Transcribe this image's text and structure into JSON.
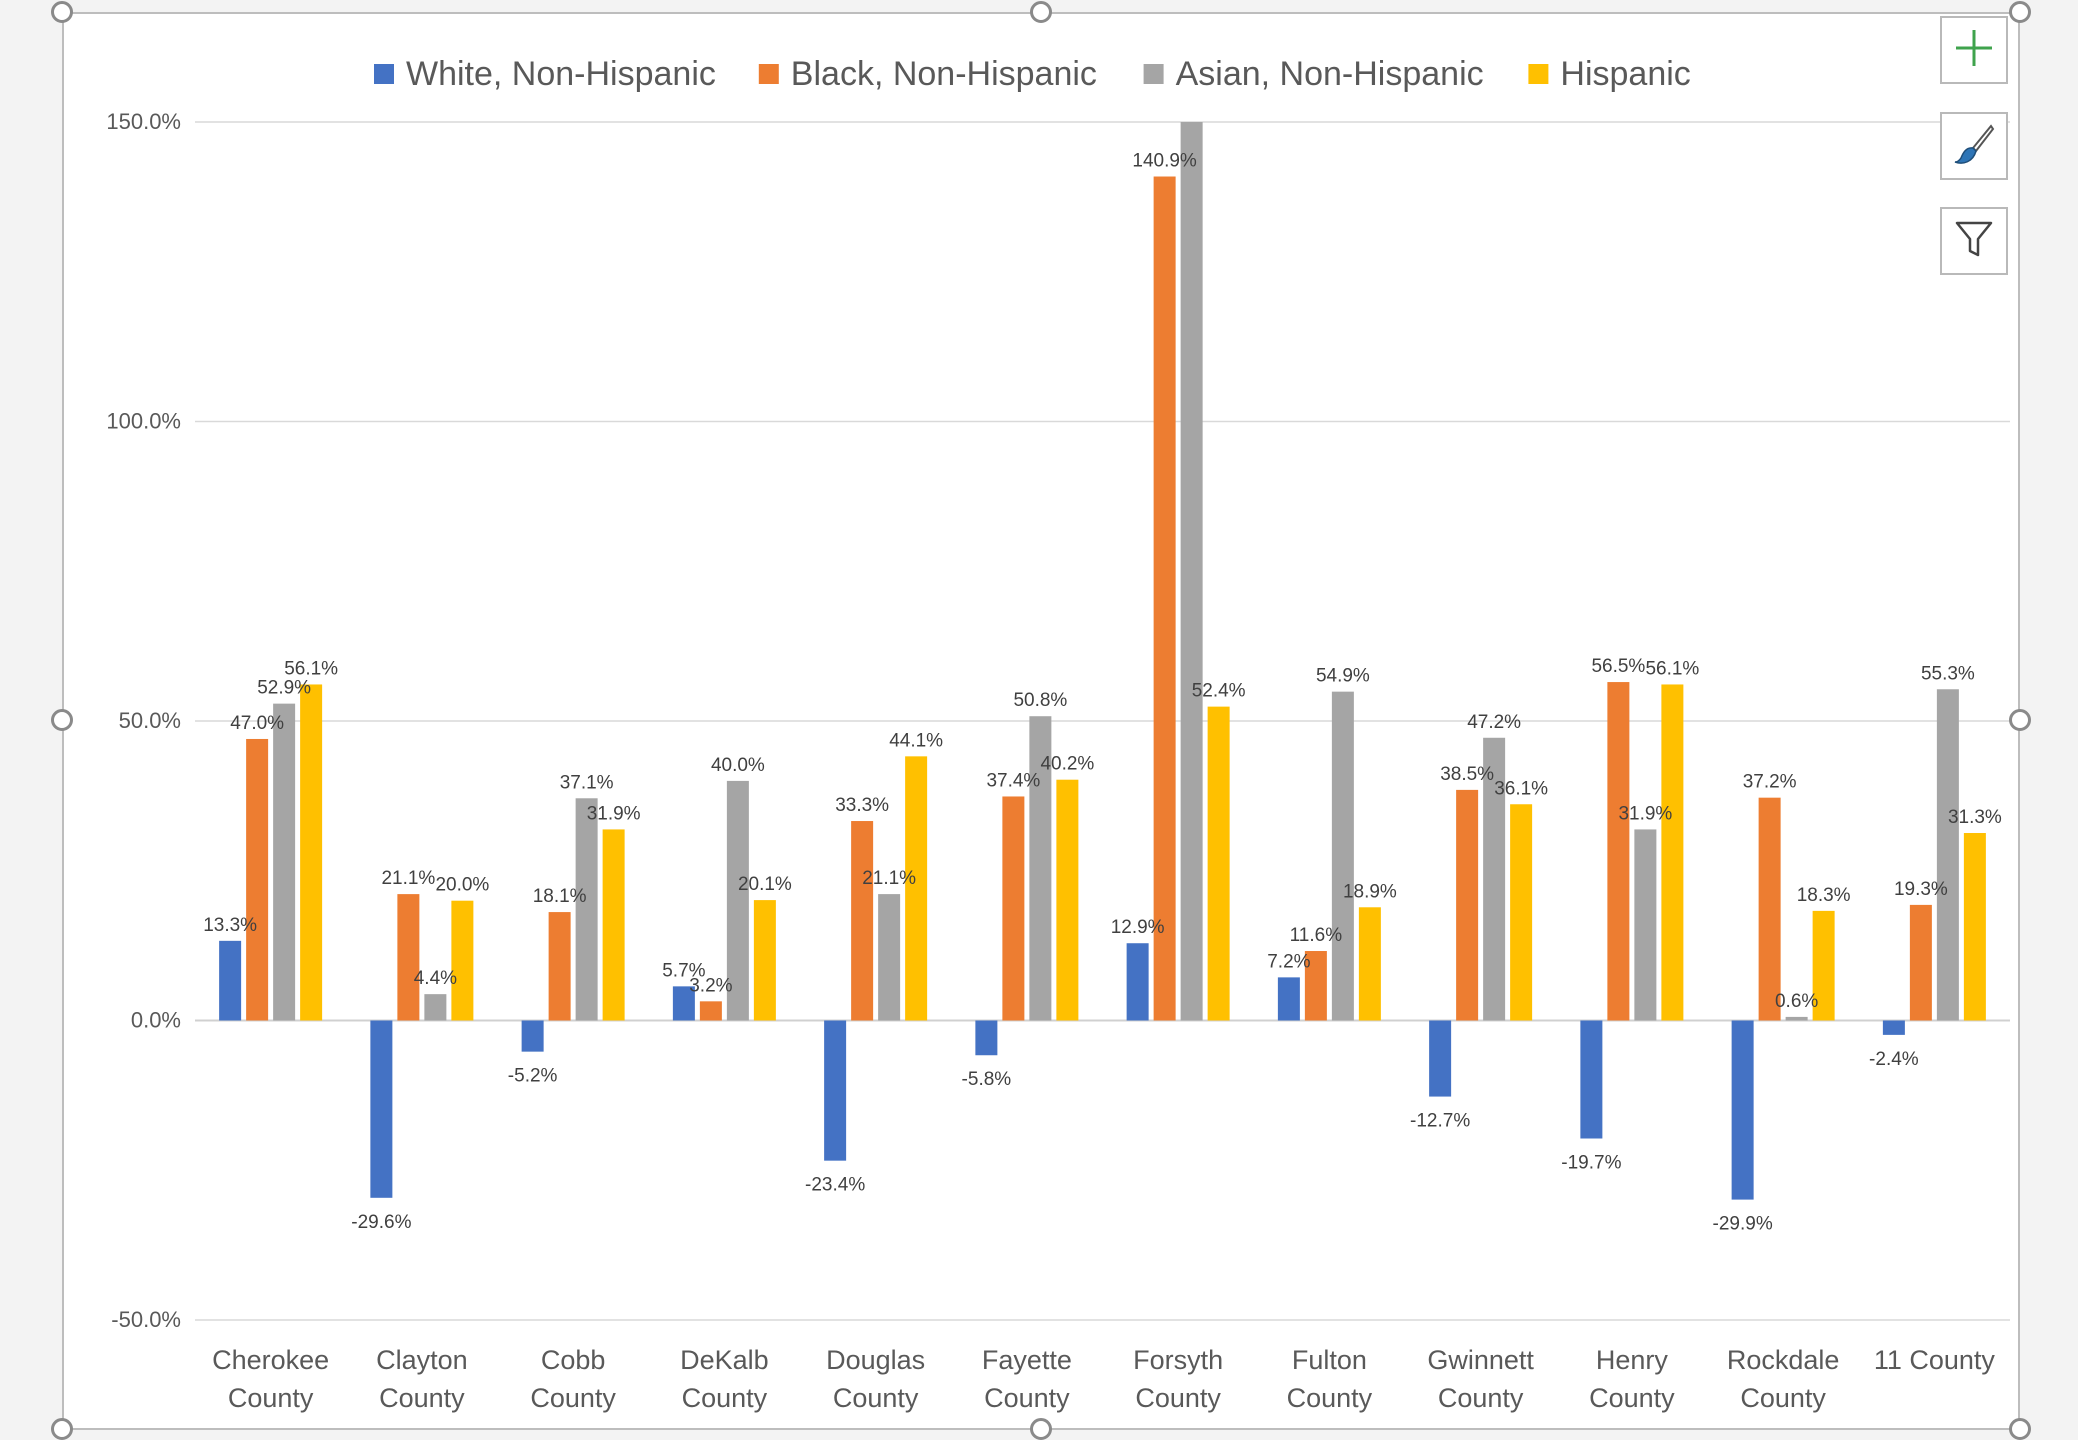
{
  "ui": {
    "add_element_icon": "plus-icon",
    "style_icon": "paintbrush-icon",
    "filter_icon": "funnel-icon"
  },
  "chart_data": {
    "type": "bar",
    "title": "",
    "xlabel": "",
    "ylabel": "",
    "ylim": [
      -50,
      150
    ],
    "yticks": [
      -50,
      0,
      50,
      100,
      150
    ],
    "ytick_labels": [
      "-50.0%",
      "0.0%",
      "50.0%",
      "100.0%",
      "150.0%"
    ],
    "grid": true,
    "legend_position": "top",
    "categories": [
      [
        "Cherokee",
        "County"
      ],
      [
        "Clayton",
        "County"
      ],
      [
        "Cobb",
        "County"
      ],
      [
        "DeKalb",
        "County"
      ],
      [
        "Douglas",
        "County"
      ],
      [
        "Fayette",
        "County"
      ],
      [
        "Forsyth",
        "County"
      ],
      [
        "Fulton",
        "County"
      ],
      [
        "Gwinnett",
        "County"
      ],
      [
        "Henry",
        "County"
      ],
      [
        "Rockdale",
        "County"
      ],
      [
        "11 County"
      ]
    ],
    "series": [
      {
        "name": "White, Non-Hispanic",
        "color": "#4472c4",
        "values": [
          13.3,
          -29.6,
          -5.2,
          5.7,
          -23.4,
          -5.8,
          12.9,
          7.2,
          -12.7,
          -19.7,
          -29.9,
          -2.4
        ],
        "labels": [
          "13.3%",
          "-29.6%",
          "-5.2%",
          "5.7%",
          "-23.4%",
          "-5.8%",
          "12.9%",
          "7.2%",
          "-12.7%",
          "-19.7%",
          "-29.9%",
          "-2.4%"
        ]
      },
      {
        "name": "Black, Non-Hispanic",
        "color": "#ed7d31",
        "values": [
          47.0,
          21.1,
          18.1,
          3.2,
          33.3,
          37.4,
          140.9,
          11.6,
          38.5,
          56.5,
          37.2,
          19.3
        ],
        "labels": [
          "47.0%",
          "21.1%",
          "18.1%",
          "3.2%",
          "33.3%",
          "37.4%",
          "140.9%",
          "11.6%",
          "38.5%",
          "56.5%",
          "37.2%",
          "19.3%"
        ]
      },
      {
        "name": "Asian, Non-Hispanic",
        "color": "#a5a5a5",
        "values": [
          52.9,
          4.4,
          37.1,
          40.0,
          21.1,
          50.8,
          150.0,
          54.9,
          47.2,
          31.9,
          0.6,
          55.3
        ],
        "labels": [
          "52.9%",
          "4.4%",
          "37.1%",
          "40.0%",
          "21.1%",
          "50.8%",
          "",
          "54.9%",
          "47.2%",
          "31.9%",
          "0.6%",
          "55.3%"
        ]
      },
      {
        "name": "Hispanic",
        "color": "#ffc000",
        "values": [
          56.1,
          20.0,
          31.9,
          20.1,
          44.1,
          40.2,
          52.4,
          18.9,
          36.1,
          56.1,
          18.3,
          31.3
        ],
        "labels": [
          "56.1%",
          "20.0%",
          "31.9%",
          "20.1%",
          "44.1%",
          "40.2%",
          "52.4%",
          "18.9%",
          "36.1%",
          "56.1%",
          "18.3%",
          "31.3%"
        ]
      }
    ]
  }
}
